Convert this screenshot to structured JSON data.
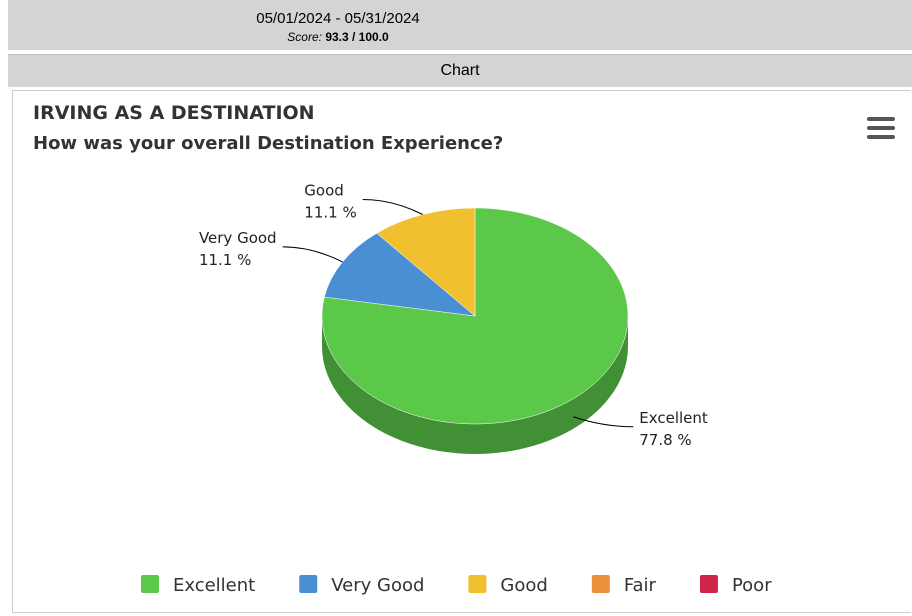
{
  "header": {
    "date_range": "05/01/2024 - 05/31/2024",
    "score_label": "Score:",
    "score_value": "93.3 / 100.0"
  },
  "tab": "Chart",
  "chart_data": {
    "type": "pie",
    "title": "IRVING AS A DESTINATION",
    "subtitle": "How was your overall Destination Experience?",
    "categories": [
      "Excellent",
      "Very Good",
      "Good",
      "Fair",
      "Poor"
    ],
    "values": [
      77.8,
      11.1,
      11.1,
      0,
      0
    ],
    "value_labels": [
      "77.8 %",
      "11.1 %",
      "11.1 %",
      null,
      null
    ],
    "colors": [
      "#5cc84a",
      "#4a8fd4",
      "#f0c030",
      "#e8903a",
      "#d0254a"
    ],
    "legend": "bottom"
  }
}
